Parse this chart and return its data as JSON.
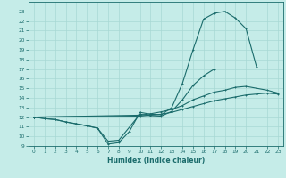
{
  "xlabel": "Humidex (Indice chaleur)",
  "bg_color": "#c5ece8",
  "grid_color": "#a8d8d4",
  "line_color": "#1a6b6b",
  "xlim": [
    -0.5,
    23.5
  ],
  "ylim": [
    9,
    24
  ],
  "xticks": [
    0,
    1,
    2,
    3,
    4,
    5,
    6,
    7,
    8,
    9,
    10,
    11,
    12,
    13,
    14,
    15,
    16,
    17,
    18,
    19,
    20,
    21,
    22,
    23
  ],
  "yticks": [
    9,
    10,
    11,
    12,
    13,
    14,
    15,
    16,
    17,
    18,
    19,
    20,
    21,
    22,
    23
  ],
  "curve1_x": [
    0,
    1,
    2,
    3,
    4,
    5,
    6,
    7,
    8,
    9,
    10,
    11,
    12,
    13,
    14,
    15,
    16,
    17,
    18,
    19,
    20,
    21
  ],
  "curve1_y": [
    12.0,
    11.85,
    11.75,
    11.5,
    11.3,
    11.1,
    10.85,
    9.2,
    9.35,
    10.5,
    12.5,
    12.3,
    12.25,
    13.0,
    15.5,
    19.0,
    22.2,
    22.8,
    23.0,
    22.3,
    21.2,
    17.2
  ],
  "curve2_x": [
    0,
    1,
    2,
    3,
    4,
    5,
    6,
    7,
    8,
    10,
    11,
    12,
    13,
    14,
    15,
    16,
    17
  ],
  "curve2_y": [
    12.0,
    11.85,
    11.75,
    11.5,
    11.3,
    11.1,
    10.85,
    9.5,
    9.6,
    12.3,
    12.15,
    12.1,
    12.6,
    13.8,
    15.3,
    16.3,
    17.0
  ],
  "curve3_x": [
    0,
    10,
    11,
    12,
    13,
    14,
    15,
    16,
    17,
    18,
    19,
    20,
    21,
    22,
    23
  ],
  "curve3_y": [
    12.0,
    12.2,
    12.35,
    12.55,
    12.8,
    13.2,
    13.8,
    14.2,
    14.6,
    14.8,
    15.1,
    15.2,
    15.0,
    14.8,
    14.5
  ],
  "curve4_x": [
    0,
    10,
    11,
    12,
    13,
    14,
    15,
    16,
    17,
    18,
    19,
    20,
    21,
    22,
    23
  ],
  "curve4_y": [
    12.0,
    12.1,
    12.2,
    12.3,
    12.5,
    12.8,
    13.1,
    13.4,
    13.7,
    13.9,
    14.1,
    14.3,
    14.4,
    14.5,
    14.4
  ]
}
